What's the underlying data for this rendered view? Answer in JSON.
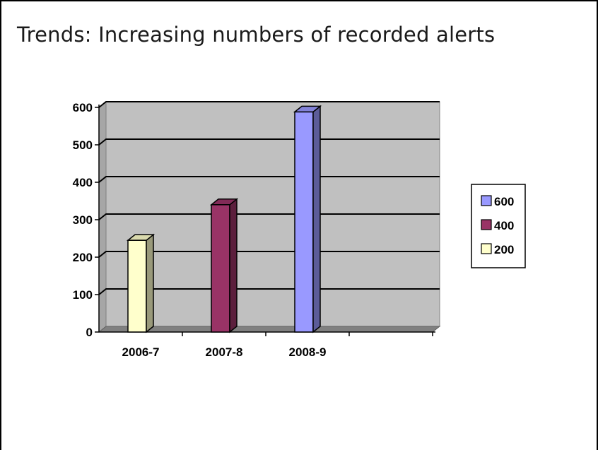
{
  "slide": {
    "title": "Trends: Increasing numbers of recorded alerts"
  },
  "chart_data": {
    "type": "bar",
    "title": "",
    "xlabel": "",
    "ylabel": "",
    "categories": [
      "2006-7",
      "2007-8",
      "2008-9",
      ""
    ],
    "series": [
      {
        "values": [
          245,
          340,
          588,
          null
        ],
        "colors": [
          "#ffffcc",
          "#993366",
          "#9999ff",
          null
        ]
      }
    ],
    "ylim": [
      0,
      600
    ],
    "yticks": [
      0,
      100,
      200,
      300,
      400,
      500,
      600
    ],
    "grid": true,
    "style": "3d-column",
    "plot_background": "#c0c0c0",
    "legend": {
      "position": "right",
      "entries": [
        {
          "label": "600",
          "color": "#9999ff"
        },
        {
          "label": "400",
          "color": "#993366"
        },
        {
          "label": "200",
          "color": "#ffffcc"
        }
      ]
    }
  }
}
